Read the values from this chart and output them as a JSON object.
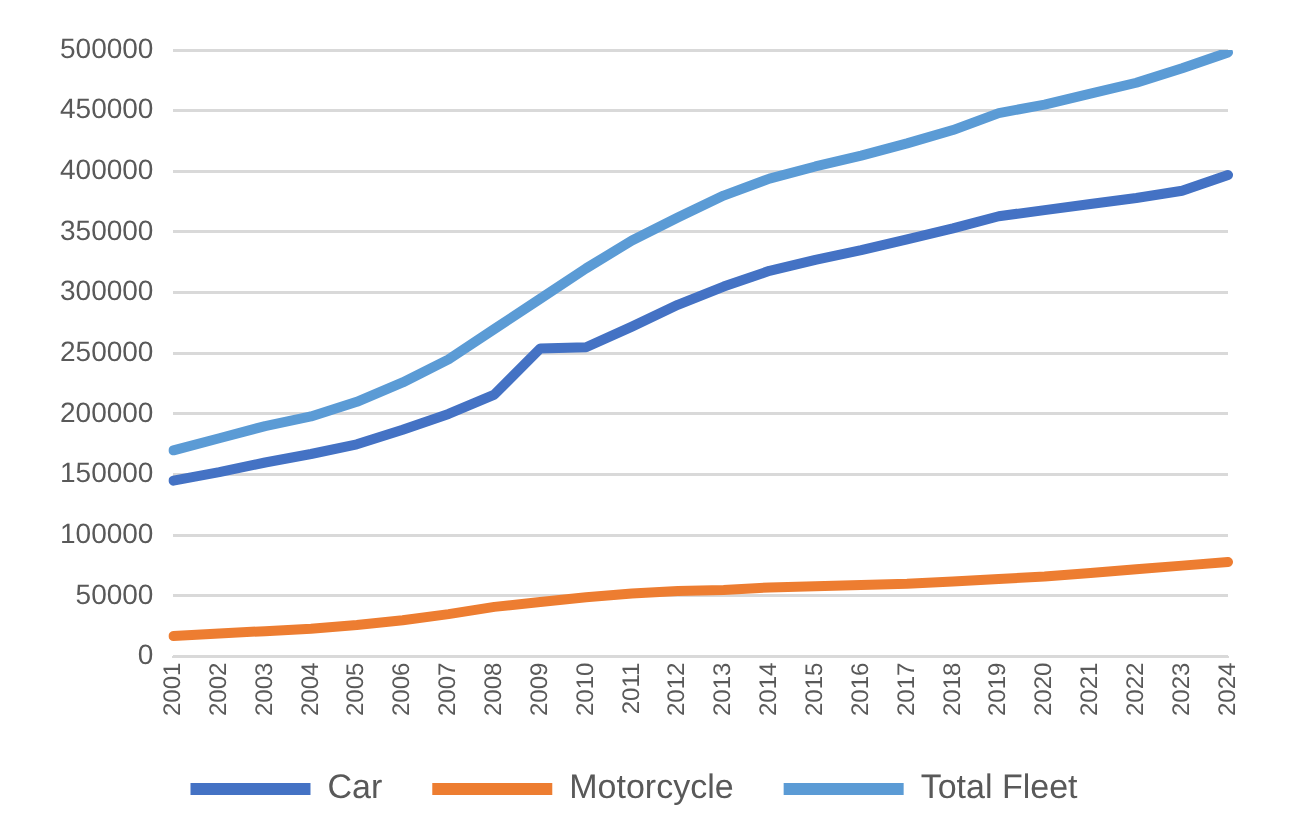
{
  "chart_data": {
    "type": "line",
    "categories": [
      "2001",
      "2002",
      "2003",
      "2004",
      "2005",
      "2006",
      "2007",
      "2008",
      "2009",
      "2010",
      "2011",
      "2012",
      "2013",
      "2014",
      "2015",
      "2016",
      "2017",
      "2018",
      "2019",
      "2020",
      "2021",
      "2022",
      "2023",
      "2024"
    ],
    "series": [
      {
        "name": "Car",
        "color": "#4472c4",
        "values": [
          145000,
          152000,
          160000,
          167000,
          175000,
          187000,
          200000,
          216000,
          254000,
          255000,
          272000,
          290000,
          305000,
          318000,
          327000,
          335000,
          344000,
          353000,
          363000,
          368000,
          373000,
          378000,
          384000,
          397000
        ]
      },
      {
        "name": "Motorcycle",
        "color": "#ed7d31",
        "values": [
          17000,
          19000,
          21000,
          23000,
          26000,
          30000,
          35000,
          41000,
          45000,
          49000,
          52000,
          54000,
          55000,
          57000,
          58000,
          59000,
          60000,
          62000,
          64000,
          66000,
          69000,
          72000,
          75000,
          78000
        ]
      },
      {
        "name": "Total Fleet",
        "color": "#5b9bd5",
        "values": [
          170000,
          180000,
          190000,
          198000,
          210000,
          226000,
          245000,
          270000,
          295000,
          320000,
          343000,
          362000,
          380000,
          394000,
          404000,
          413000,
          423000,
          434000,
          448000,
          455000,
          464000,
          473000,
          485000,
          498000
        ]
      }
    ],
    "ylim": [
      0,
      500000
    ],
    "yticks": [
      0,
      50000,
      100000,
      150000,
      200000,
      250000,
      300000,
      350000,
      400000,
      450000,
      500000
    ],
    "grid": "y",
    "legend": "bottom",
    "marker": "none",
    "line_style": "solid"
  }
}
